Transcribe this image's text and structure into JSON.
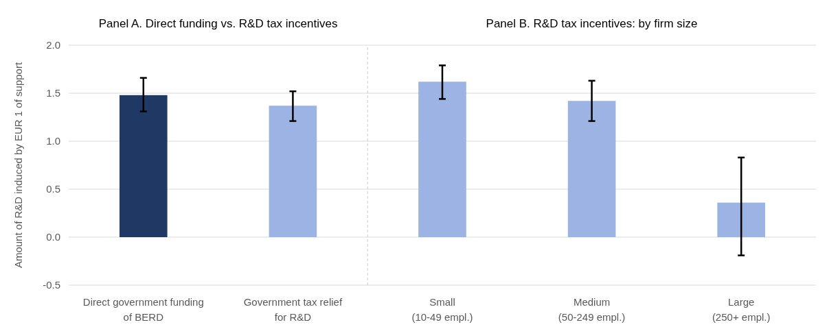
{
  "chart_data": [
    {
      "type": "bar",
      "title": "Panel A. Direct funding vs. R&D tax incentives",
      "ylabel": "Amount of R&D induced by EUR 1 of support",
      "categories": [
        "Direct government funding\nof BERD",
        "Government tax relief\nfor R&D"
      ],
      "values": [
        1.48,
        1.37
      ],
      "colors": [
        "#203864",
        "#9db3e3"
      ],
      "errors": [
        [
          1.31,
          1.66
        ],
        [
          1.21,
          1.52
        ]
      ],
      "ylim": [
        -0.5,
        2.0
      ],
      "yticks": [
        {
          "value": -0.5,
          "label": "-0.5"
        },
        {
          "value": 0,
          "label": "0.0"
        },
        {
          "value": 0.5,
          "label": "0.5"
        },
        {
          "value": 1,
          "label": "1.0"
        },
        {
          "value": 1.5,
          "label": "1.5"
        },
        {
          "value": 2,
          "label": "2.0"
        }
      ],
      "grid": "y"
    },
    {
      "type": "bar",
      "title": "Panel B. R&D tax incentives: by firm size",
      "categories": [
        "Small\n(10-49 empl.)",
        "Medium\n(50-249 empl.)",
        "Large\n(250+ empl.)"
      ],
      "values": [
        1.62,
        1.42,
        0.36
      ],
      "colors": [
        "#9db3e3",
        "#9db3e3",
        "#9db3e3"
      ],
      "errors": [
        [
          1.44,
          1.79
        ],
        [
          1.21,
          1.63
        ],
        [
          -0.19,
          0.83
        ]
      ],
      "ylim": [
        -0.5,
        2.0
      ],
      "yticks": [
        {
          "value": -0.5,
          "label": null
        },
        {
          "value": 0,
          "label": null
        },
        {
          "value": 0.5,
          "label": null
        },
        {
          "value": 1,
          "label": null
        },
        {
          "value": 1.5,
          "label": null
        },
        {
          "value": 2,
          "label": null
        }
      ],
      "grid": "y",
      "tick_labels": "x"
    }
  ]
}
